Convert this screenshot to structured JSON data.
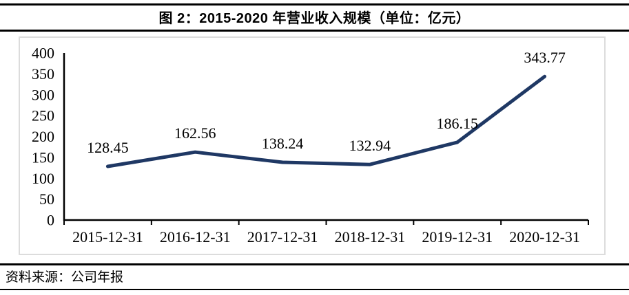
{
  "header": {
    "title": "图 2：2015-2020 年营业收入规模（单位：亿元）"
  },
  "chart_data": {
    "type": "line",
    "title": "图 2：2015-2020 年营业收入规模（单位：亿元）",
    "categories": [
      "2015-12-31",
      "2016-12-31",
      "2017-12-31",
      "2018-12-31",
      "2019-12-31",
      "2020-12-31"
    ],
    "values": [
      128.45,
      162.56,
      138.24,
      132.94,
      186.15,
      343.77
    ],
    "data_labels": [
      "128.45",
      "162.56",
      "138.24",
      "132.94",
      "186.15",
      "343.77"
    ],
    "xlabel": "",
    "ylabel": "",
    "ylim": [
      0,
      400
    ],
    "yticks": [
      0,
      50,
      100,
      150,
      200,
      250,
      300,
      350,
      400
    ],
    "grid": false,
    "legend": "none",
    "line_color": "#1f3864",
    "axis_color": "#000000"
  },
  "footer": {
    "source": "资料来源：公司年报"
  }
}
